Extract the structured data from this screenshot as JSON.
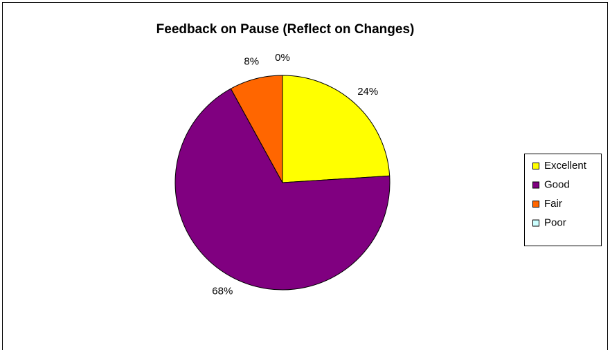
{
  "chart_data": {
    "type": "pie",
    "title": "Feedback on Pause (Reflect on Changes)",
    "categories": [
      "Excellent",
      "Good",
      "Fair",
      "Poor"
    ],
    "values": [
      24,
      68,
      8,
      0
    ],
    "value_labels": [
      "24%",
      "68%",
      "8%",
      "0%"
    ],
    "colors": [
      "#ffff00",
      "#800080",
      "#ff6600",
      "#ccffff"
    ],
    "legend": "right"
  }
}
